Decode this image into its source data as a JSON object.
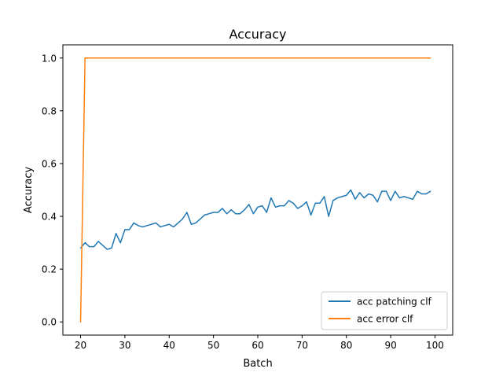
{
  "chart_data": {
    "type": "line",
    "title": "Accuracy",
    "xlabel": "Batch",
    "ylabel": "Accuracy",
    "xlim": [
      16,
      104
    ],
    "ylim": [
      -0.05,
      1.05
    ],
    "xticks": [
      20,
      30,
      40,
      50,
      60,
      70,
      80,
      90,
      100
    ],
    "yticks": [
      0.0,
      0.2,
      0.4,
      0.6,
      0.8,
      1.0
    ],
    "xtick_labels": [
      "20",
      "30",
      "40",
      "50",
      "60",
      "70",
      "80",
      "90",
      "100"
    ],
    "ytick_labels": [
      "0.0",
      "0.2",
      "0.4",
      "0.6",
      "0.8",
      "1.0"
    ],
    "grid": false,
    "legend_position": "lower-right",
    "x": [
      20,
      21,
      22,
      23,
      24,
      25,
      26,
      27,
      28,
      29,
      30,
      31,
      32,
      33,
      34,
      35,
      36,
      37,
      38,
      39,
      40,
      41,
      42,
      43,
      44,
      45,
      46,
      47,
      48,
      49,
      50,
      51,
      52,
      53,
      54,
      55,
      56,
      57,
      58,
      59,
      60,
      61,
      62,
      63,
      64,
      65,
      66,
      67,
      68,
      69,
      70,
      71,
      72,
      73,
      74,
      75,
      76,
      77,
      78,
      79,
      80,
      81,
      82,
      83,
      84,
      85,
      86,
      87,
      88,
      89,
      90,
      91,
      92,
      93,
      94,
      95,
      96,
      97,
      98,
      99
    ],
    "series": [
      {
        "name": "acc patching clf",
        "color": "#1f77b4",
        "values": [
          0.28,
          0.3,
          0.285,
          0.285,
          0.305,
          0.29,
          0.275,
          0.28,
          0.335,
          0.3,
          0.35,
          0.35,
          0.375,
          0.365,
          0.36,
          0.365,
          0.37,
          0.375,
          0.36,
          0.365,
          0.37,
          0.36,
          0.375,
          0.39,
          0.415,
          0.37,
          0.375,
          0.39,
          0.405,
          0.41,
          0.415,
          0.415,
          0.43,
          0.41,
          0.425,
          0.41,
          0.41,
          0.425,
          0.445,
          0.41,
          0.435,
          0.44,
          0.415,
          0.47,
          0.435,
          0.44,
          0.44,
          0.46,
          0.45,
          0.43,
          0.44,
          0.455,
          0.405,
          0.45,
          0.45,
          0.475,
          0.4,
          0.46,
          0.47,
          0.475,
          0.48,
          0.5,
          0.465,
          0.49,
          0.47,
          0.485,
          0.48,
          0.455,
          0.495,
          0.495,
          0.46,
          0.495,
          0.47,
          0.475,
          0.47,
          0.465,
          0.495,
          0.485,
          0.485,
          0.495
        ]
      },
      {
        "name": "acc error clf",
        "color": "#ff7f0e",
        "values": [
          0.0,
          1.0,
          1.0,
          1.0,
          1.0,
          1.0,
          1.0,
          1.0,
          1.0,
          1.0,
          1.0,
          1.0,
          1.0,
          1.0,
          1.0,
          1.0,
          1.0,
          1.0,
          1.0,
          1.0,
          1.0,
          1.0,
          1.0,
          1.0,
          1.0,
          1.0,
          1.0,
          1.0,
          1.0,
          1.0,
          1.0,
          1.0,
          1.0,
          1.0,
          1.0,
          1.0,
          1.0,
          1.0,
          1.0,
          1.0,
          1.0,
          1.0,
          1.0,
          1.0,
          1.0,
          1.0,
          1.0,
          1.0,
          1.0,
          1.0,
          1.0,
          1.0,
          1.0,
          1.0,
          1.0,
          1.0,
          1.0,
          1.0,
          1.0,
          1.0,
          1.0,
          1.0,
          1.0,
          1.0,
          1.0,
          1.0,
          1.0,
          1.0,
          1.0,
          1.0,
          1.0,
          1.0,
          1.0,
          1.0,
          1.0,
          1.0,
          1.0,
          1.0,
          1.0,
          1.0
        ]
      }
    ]
  }
}
